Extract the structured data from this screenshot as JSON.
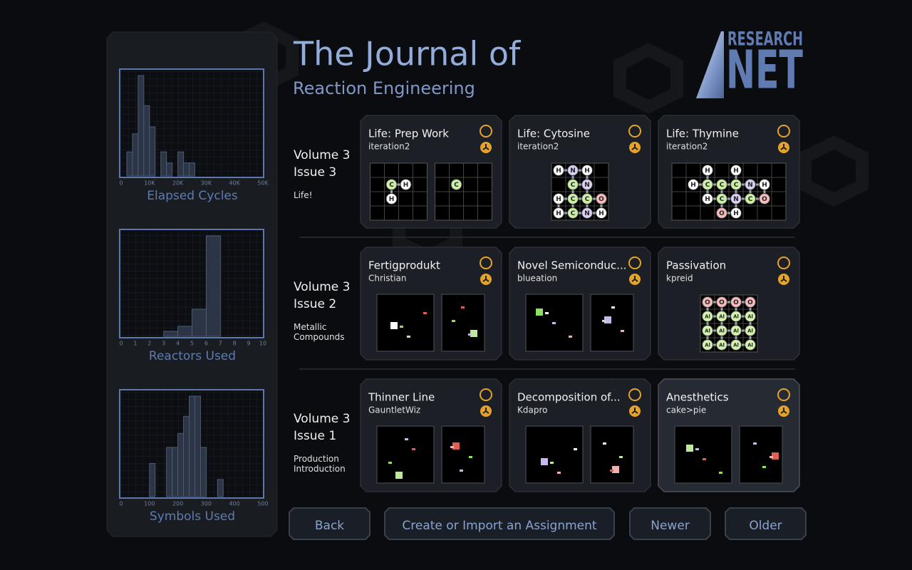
{
  "header": {
    "title": "The Journal of",
    "subtitle": "Reaction Engineering",
    "logo_top": "RESEARCH",
    "logo_bottom": "NET"
  },
  "charts": [
    {
      "type": "histogram",
      "label": "Elapsed Cycles",
      "color": "#2b3546",
      "bins": [
        2000,
        4000,
        6000,
        8000,
        10000,
        12000,
        14000,
        16000,
        18000,
        20000,
        22000,
        24000,
        26000
      ],
      "counts": [
        2.4,
        4.2,
        10,
        7,
        4.9,
        0,
        2.4,
        1.3,
        0,
        2.4,
        1.3,
        1.3
      ],
      "xlim": [
        0,
        50000
      ],
      "ylim": [
        0,
        10.5
      ],
      "xticks": [
        0,
        {
          "value": 10000,
          "label": "10K"
        },
        {
          "value": 20000,
          "label": "20K"
        },
        {
          "value": 30000,
          "label": "30K"
        },
        {
          "value": 40000,
          "label": "40K"
        },
        {
          "value": 50000,
          "label": "50K"
        }
      ]
    },
    {
      "type": "histogram",
      "label": "Reactors Used",
      "color": "#2b3546",
      "bins": [
        3,
        4,
        5,
        6,
        7
      ],
      "counts": [
        0.5,
        1,
        2.7,
        10
      ],
      "xlim": [
        0,
        10
      ],
      "ylim": [
        0,
        10.5
      ],
      "xticks": [
        0,
        1,
        2,
        3,
        4,
        5,
        6,
        7,
        8,
        9,
        10
      ]
    },
    {
      "type": "histogram",
      "label": "Symbols Used",
      "color": "#2b3546",
      "bins": [
        100,
        120,
        140,
        160,
        180,
        200,
        220,
        240,
        260,
        280,
        300,
        320,
        340,
        360
      ],
      "counts": [
        3.3,
        0,
        0,
        4.9,
        4.9,
        6.3,
        8,
        10,
        10,
        4.9,
        0,
        0,
        1.7
      ],
      "xlim": [
        0,
        500
      ],
      "ylim": [
        0,
        10.5
      ],
      "xticks": [
        0,
        100,
        200,
        300,
        400,
        500
      ]
    }
  ],
  "issues": [
    {
      "volume": "Volume 3",
      "issue": "Issue 3",
      "theme": "Life!",
      "assignments": [
        {
          "title": "Life: Prep Work",
          "author": "iteration2",
          "grids": [
            [
              [
                null,
                null,
                null,
                null
              ],
              [
                null,
                "C",
                "H",
                null
              ],
              [
                null,
                "H",
                null,
                null
              ],
              [
                null,
                null,
                null,
                null
              ]
            ],
            [
              [
                null,
                null,
                null,
                null
              ],
              [
                null,
                "C",
                null,
                null
              ],
              [
                null,
                null,
                null,
                null
              ],
              [
                null,
                null,
                null,
                null
              ]
            ]
          ]
        },
        {
          "title": "Life: Cytosine",
          "author": "iteration2",
          "grids": [
            [
              [
                "H",
                "N",
                "H",
                null
              ],
              [
                null,
                "C",
                "N",
                null
              ],
              [
                "H",
                "C",
                "C",
                "O"
              ],
              [
                "H",
                "C",
                "N",
                "H"
              ]
            ]
          ]
        },
        {
          "title": "Life: Thymine",
          "author": "iteration2",
          "grids": [
            [
              [
                null,
                null,
                "H",
                null,
                "H",
                null,
                null,
                null
              ],
              [
                null,
                "H",
                "C",
                "C",
                "C",
                "N",
                "H",
                null
              ],
              [
                null,
                null,
                "H",
                "C",
                "N",
                "C",
                "O",
                null
              ],
              [
                null,
                null,
                null,
                "O",
                "H",
                null,
                null,
                null
              ]
            ]
          ]
        }
      ]
    },
    {
      "volume": "Volume 3",
      "issue": "Issue 2",
      "theme": "Metallic Compounds",
      "assignments": [
        {
          "title": "Fertigprodukt",
          "author": "Christian"
        },
        {
          "title": "Novel Semiconduc...",
          "author": "blueation"
        },
        {
          "title": "Passivation",
          "author": "kpreid",
          "grids": [
            [
              [
                "O",
                "O",
                "O",
                "O"
              ],
              [
                "Al",
                "Al",
                "Al",
                "Al"
              ],
              [
                "Al",
                "Al",
                "Al",
                "Al"
              ],
              [
                "Al",
                "Al",
                "Al",
                "Al"
              ]
            ]
          ]
        }
      ]
    },
    {
      "volume": "Volume 3",
      "issue": "Issue 1",
      "theme": "Production Introduction",
      "assignments": [
        {
          "title": "Thinner Line",
          "author": "GauntletWiz"
        },
        {
          "title": "Decomposition of...",
          "author": "Kdapro"
        },
        {
          "title": "Anesthetics",
          "author": "cake>pie"
        }
      ]
    }
  ],
  "buttons": [
    "Back",
    "Create or Import an Assignment",
    "Newer",
    "Older"
  ]
}
